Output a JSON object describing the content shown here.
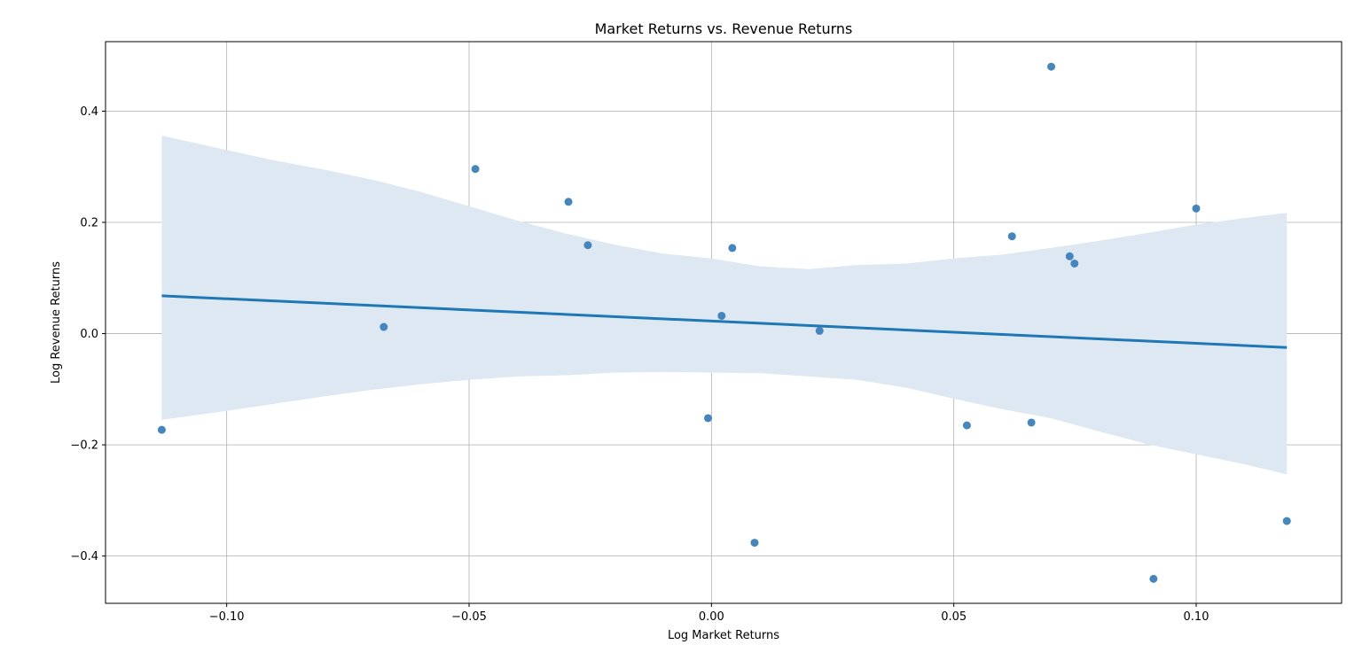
{
  "chart_data": {
    "type": "scatter",
    "title": "Market Returns vs. Revenue Returns",
    "xlabel": "Log Market Returns",
    "ylabel": "Log Revenue Returns",
    "xlim": [
      -0.125,
      0.13
    ],
    "ylim": [
      -0.485,
      0.525
    ],
    "x_ticks": [
      -0.1,
      -0.05,
      0.0,
      0.05,
      0.1
    ],
    "x_tick_labels": [
      "−0.10",
      "−0.05",
      "0.00",
      "0.05",
      "0.10"
    ],
    "y_ticks": [
      -0.4,
      -0.2,
      0.0,
      0.2,
      0.4
    ],
    "y_tick_labels": [
      "−0.4",
      "−0.2",
      "0.0",
      "0.2",
      "0.4"
    ],
    "grid": true,
    "points": [
      {
        "x": -0.1134,
        "y": -0.173
      },
      {
        "x": -0.0676,
        "y": 0.012
      },
      {
        "x": -0.0487,
        "y": 0.296
      },
      {
        "x": -0.0295,
        "y": 0.237
      },
      {
        "x": -0.0255,
        "y": 0.159
      },
      {
        "x": -0.0007,
        "y": -0.152
      },
      {
        "x": 0.0021,
        "y": 0.032
      },
      {
        "x": 0.0043,
        "y": 0.154
      },
      {
        "x": 0.0089,
        "y": -0.376
      },
      {
        "x": 0.0223,
        "y": 0.005
      },
      {
        "x": 0.0527,
        "y": -0.165
      },
      {
        "x": 0.062,
        "y": 0.175
      },
      {
        "x": 0.066,
        "y": -0.16
      },
      {
        "x": 0.0701,
        "y": 0.48
      },
      {
        "x": 0.0739,
        "y": 0.139
      },
      {
        "x": 0.0749,
        "y": 0.126
      },
      {
        "x": 0.0912,
        "y": -0.441
      },
      {
        "x": 0.1,
        "y": 0.225
      },
      {
        "x": 0.1187,
        "y": -0.337
      }
    ],
    "regression_line": [
      {
        "x": -0.1134,
        "y": 0.068
      },
      {
        "x": 0.1187,
        "y": -0.025
      }
    ],
    "confidence_band": {
      "x": [
        -0.1134,
        -0.1,
        -0.09,
        -0.08,
        -0.07,
        -0.06,
        -0.05,
        -0.04,
        -0.03,
        -0.02,
        -0.01,
        0.0,
        0.01,
        0.02,
        0.03,
        0.04,
        0.05,
        0.06,
        0.07,
        0.08,
        0.09,
        0.1,
        0.11,
        0.1187
      ],
      "upper": [
        0.356,
        0.33,
        0.311,
        0.295,
        0.277,
        0.255,
        0.229,
        0.203,
        0.18,
        0.16,
        0.144,
        0.135,
        0.121,
        0.116,
        0.123,
        0.126,
        0.135,
        0.142,
        0.154,
        0.167,
        0.181,
        0.196,
        0.208,
        0.217
      ],
      "lower": [
        -0.155,
        -0.139,
        -0.126,
        -0.113,
        -0.101,
        -0.091,
        -0.083,
        -0.077,
        -0.075,
        -0.07,
        -0.069,
        -0.07,
        -0.071,
        -0.077,
        -0.083,
        -0.097,
        -0.117,
        -0.136,
        -0.152,
        -0.176,
        -0.199,
        -0.217,
        -0.235,
        -0.253
      ]
    },
    "colors": {
      "point": "#3b7fb9",
      "line": "#1f77b4",
      "band": "#dde8f3",
      "grid": "#b0b0b0",
      "axis": "#000000"
    }
  }
}
